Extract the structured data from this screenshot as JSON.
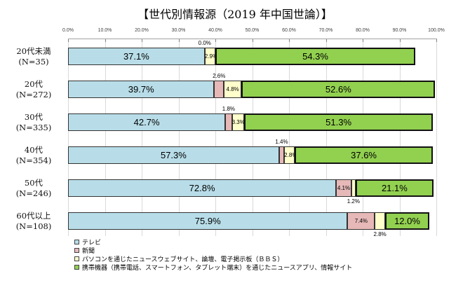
{
  "chart_data": {
    "type": "bar",
    "stacked": true,
    "orientation": "horizontal",
    "title": "【世代別情報源（2019 年中国世論）】",
    "x_axis": {
      "min": 0,
      "max": 100,
      "tick_labels": [
        "0.0%",
        "10.0%",
        "20.0%",
        "30.0%",
        "40.0%",
        "50.0%",
        "60.0%",
        "70.0%",
        "80.0%",
        "90.0%",
        "100.0%"
      ]
    },
    "grid": "vertical",
    "legend_position": "bottom-left",
    "categories": [
      {
        "label": "20代未満",
        "n": "(N=35)"
      },
      {
        "label": "20代",
        "n": "(N=272)"
      },
      {
        "label": "30代",
        "n": "(N=335)"
      },
      {
        "label": "40代",
        "n": "(N=354)"
      },
      {
        "label": "50代",
        "n": "(N=246)"
      },
      {
        "label": "60代以上",
        "n": "(N=108)"
      }
    ],
    "series": [
      {
        "name": "テレビ",
        "color": "#b8dde8",
        "values": [
          37.1,
          39.7,
          42.7,
          57.3,
          72.8,
          75.9
        ],
        "label_placement": [
          "inside",
          "inside",
          "inside",
          "inside",
          "inside",
          "inside"
        ],
        "label_size": "large"
      },
      {
        "name": "新聞",
        "color": "#e6b9b8",
        "values": [
          0.0,
          2.6,
          1.8,
          1.4,
          4.1,
          7.4
        ],
        "label_placement": [
          "above",
          "above",
          "above",
          "above",
          "inside",
          "inside"
        ],
        "label_size": "small"
      },
      {
        "name": "パソコンを通じたニュースウェブサイト、論壇、電子掲示板（ＢＢＳ）",
        "color": "#ffffcc",
        "values": [
          2.9,
          4.8,
          3.3,
          2.8,
          1.2,
          2.8
        ],
        "label_placement": [
          "inside",
          "inside",
          "inside",
          "inside",
          "below",
          "below"
        ],
        "label_size": "small"
      },
      {
        "name": "携帯機器（携帯電話、スマートフォン、タブレット端末）を通じたニュースアプリ、情報サイト",
        "color": "#92d050",
        "values": [
          54.3,
          52.6,
          51.3,
          37.6,
          21.1,
          12.0
        ],
        "label_placement": [
          "inside",
          "inside",
          "inside",
          "inside",
          "inside",
          "inside"
        ],
        "label_size": "large"
      }
    ]
  }
}
